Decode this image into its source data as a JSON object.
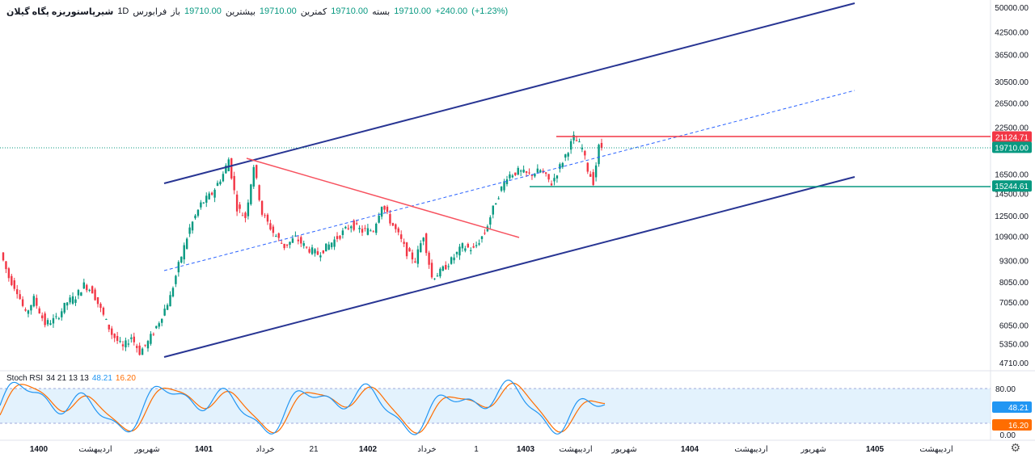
{
  "header": {
    "symbol": "شیرپاستوریزه پگاه گیلان",
    "interval": "1D",
    "exchange": "فرابورس",
    "open_label": "باز",
    "open": "19710.00",
    "high_label": "بیشترین",
    "high": "19710.00",
    "low_label": "کمترین",
    "low": "19710.00",
    "close_label": "بسته",
    "close": "19710.00",
    "change": "+240.00",
    "change_pct": "(+1.23%)"
  },
  "oscillator": {
    "name": "Stoch RSI",
    "params": "34 21 13 13",
    "k_value": "48.21",
    "d_value": "16.20",
    "axis_ticks": [
      "80.00",
      "0.00"
    ],
    "band_upper": 80,
    "band_lower": 20,
    "k_color": "#2196f3",
    "d_color": "#ff6d00"
  },
  "price_axis": {
    "ticks": [
      "50000.00",
      "42500.00",
      "36500.00",
      "30500.00",
      "26500.00",
      "22500.00",
      "16500.00",
      "14500.00",
      "12500.00",
      "10900.00",
      "9300.00",
      "8050.00",
      "7050.00",
      "6050.00",
      "5350.00",
      "4710.00"
    ],
    "scale": "log"
  },
  "price_labels": [
    {
      "value": "21124.71",
      "color": "#f23645"
    },
    {
      "value": "19710.00",
      "color": "#089981"
    },
    {
      "value": "15244.61",
      "color": "#089981"
    }
  ],
  "time_axis": {
    "ticks": [
      "1400",
      "اردیبهشت",
      "شهریور",
      "1401",
      "خرداد",
      "21",
      "1402",
      "خرداد",
      "1",
      "1403",
      "اردیبهشت",
      "شهریور",
      "1404",
      "اردیبهشت",
      "شهریور",
      "1405",
      "اردیبهشت"
    ]
  },
  "colors": {
    "up": "#089981",
    "down": "#f23645",
    "channel": "#283593",
    "midline": "#2962ff",
    "trendline": "#f7525f",
    "support": "#089981",
    "resistance": "#f23645"
  },
  "settings_icon": "gear-icon",
  "chart_data": {
    "type": "candlestick",
    "scale": "log",
    "ylim": [
      4600,
      52000
    ],
    "last_price": 19710,
    "levels": {
      "resistance": 21124.71,
      "support": 15244.61
    },
    "path": [
      {
        "t": 0,
        "p": 9800
      },
      {
        "t": 3,
        "p": 8300
      },
      {
        "t": 6,
        "p": 7600
      },
      {
        "t": 9,
        "p": 6500
      },
      {
        "t": 12,
        "p": 7200
      },
      {
        "t": 16,
        "p": 6100
      },
      {
        "t": 20,
        "p": 6300
      },
      {
        "t": 24,
        "p": 7050
      },
      {
        "t": 27,
        "p": 7300
      },
      {
        "t": 30,
        "p": 7900
      },
      {
        "t": 33,
        "p": 7600
      },
      {
        "t": 36,
        "p": 6700
      },
      {
        "t": 40,
        "p": 5700
      },
      {
        "t": 44,
        "p": 5200
      },
      {
        "t": 47,
        "p": 5600
      },
      {
        "t": 50,
        "p": 5050
      },
      {
        "t": 53,
        "p": 5400
      },
      {
        "t": 57,
        "p": 6200
      },
      {
        "t": 61,
        "p": 7300
      },
      {
        "t": 64,
        "p": 9000
      },
      {
        "t": 68,
        "p": 11500
      },
      {
        "t": 72,
        "p": 13500
      },
      {
        "t": 76,
        "p": 14500
      },
      {
        "t": 80,
        "p": 16500
      },
      {
        "t": 82,
        "p": 18200
      },
      {
        "t": 85,
        "p": 13200
      },
      {
        "t": 88,
        "p": 12400
      },
      {
        "t": 91,
        "p": 17500
      },
      {
        "t": 94,
        "p": 12700
      },
      {
        "t": 98,
        "p": 11200
      },
      {
        "t": 102,
        "p": 10200
      },
      {
        "t": 106,
        "p": 10800
      },
      {
        "t": 110,
        "p": 10100
      },
      {
        "t": 114,
        "p": 9700
      },
      {
        "t": 118,
        "p": 10300
      },
      {
        "t": 122,
        "p": 11000
      },
      {
        "t": 126,
        "p": 11800
      },
      {
        "t": 130,
        "p": 11300
      },
      {
        "t": 134,
        "p": 11400
      },
      {
        "t": 137,
        "p": 13500
      },
      {
        "t": 140,
        "p": 12100
      },
      {
        "t": 143,
        "p": 11000
      },
      {
        "t": 146,
        "p": 9800
      },
      {
        "t": 149,
        "p": 9300
      },
      {
        "t": 152,
        "p": 11000
      },
      {
        "t": 155,
        "p": 8300
      },
      {
        "t": 158,
        "p": 8600
      },
      {
        "t": 162,
        "p": 9300
      },
      {
        "t": 166,
        "p": 10200
      },
      {
        "t": 170,
        "p": 10000
      },
      {
        "t": 174,
        "p": 11200
      },
      {
        "t": 178,
        "p": 13800
      },
      {
        "t": 182,
        "p": 16300
      },
      {
        "t": 186,
        "p": 16800
      },
      {
        "t": 190,
        "p": 16400
      },
      {
        "t": 194,
        "p": 16900
      },
      {
        "t": 198,
        "p": 15500
      },
      {
        "t": 202,
        "p": 18000
      },
      {
        "t": 206,
        "p": 21000
      },
      {
        "t": 209,
        "p": 19600
      },
      {
        "t": 211,
        "p": 17000
      },
      {
        "t": 213,
        "p": 15700
      },
      {
        "t": 215,
        "p": 19710
      }
    ]
  }
}
